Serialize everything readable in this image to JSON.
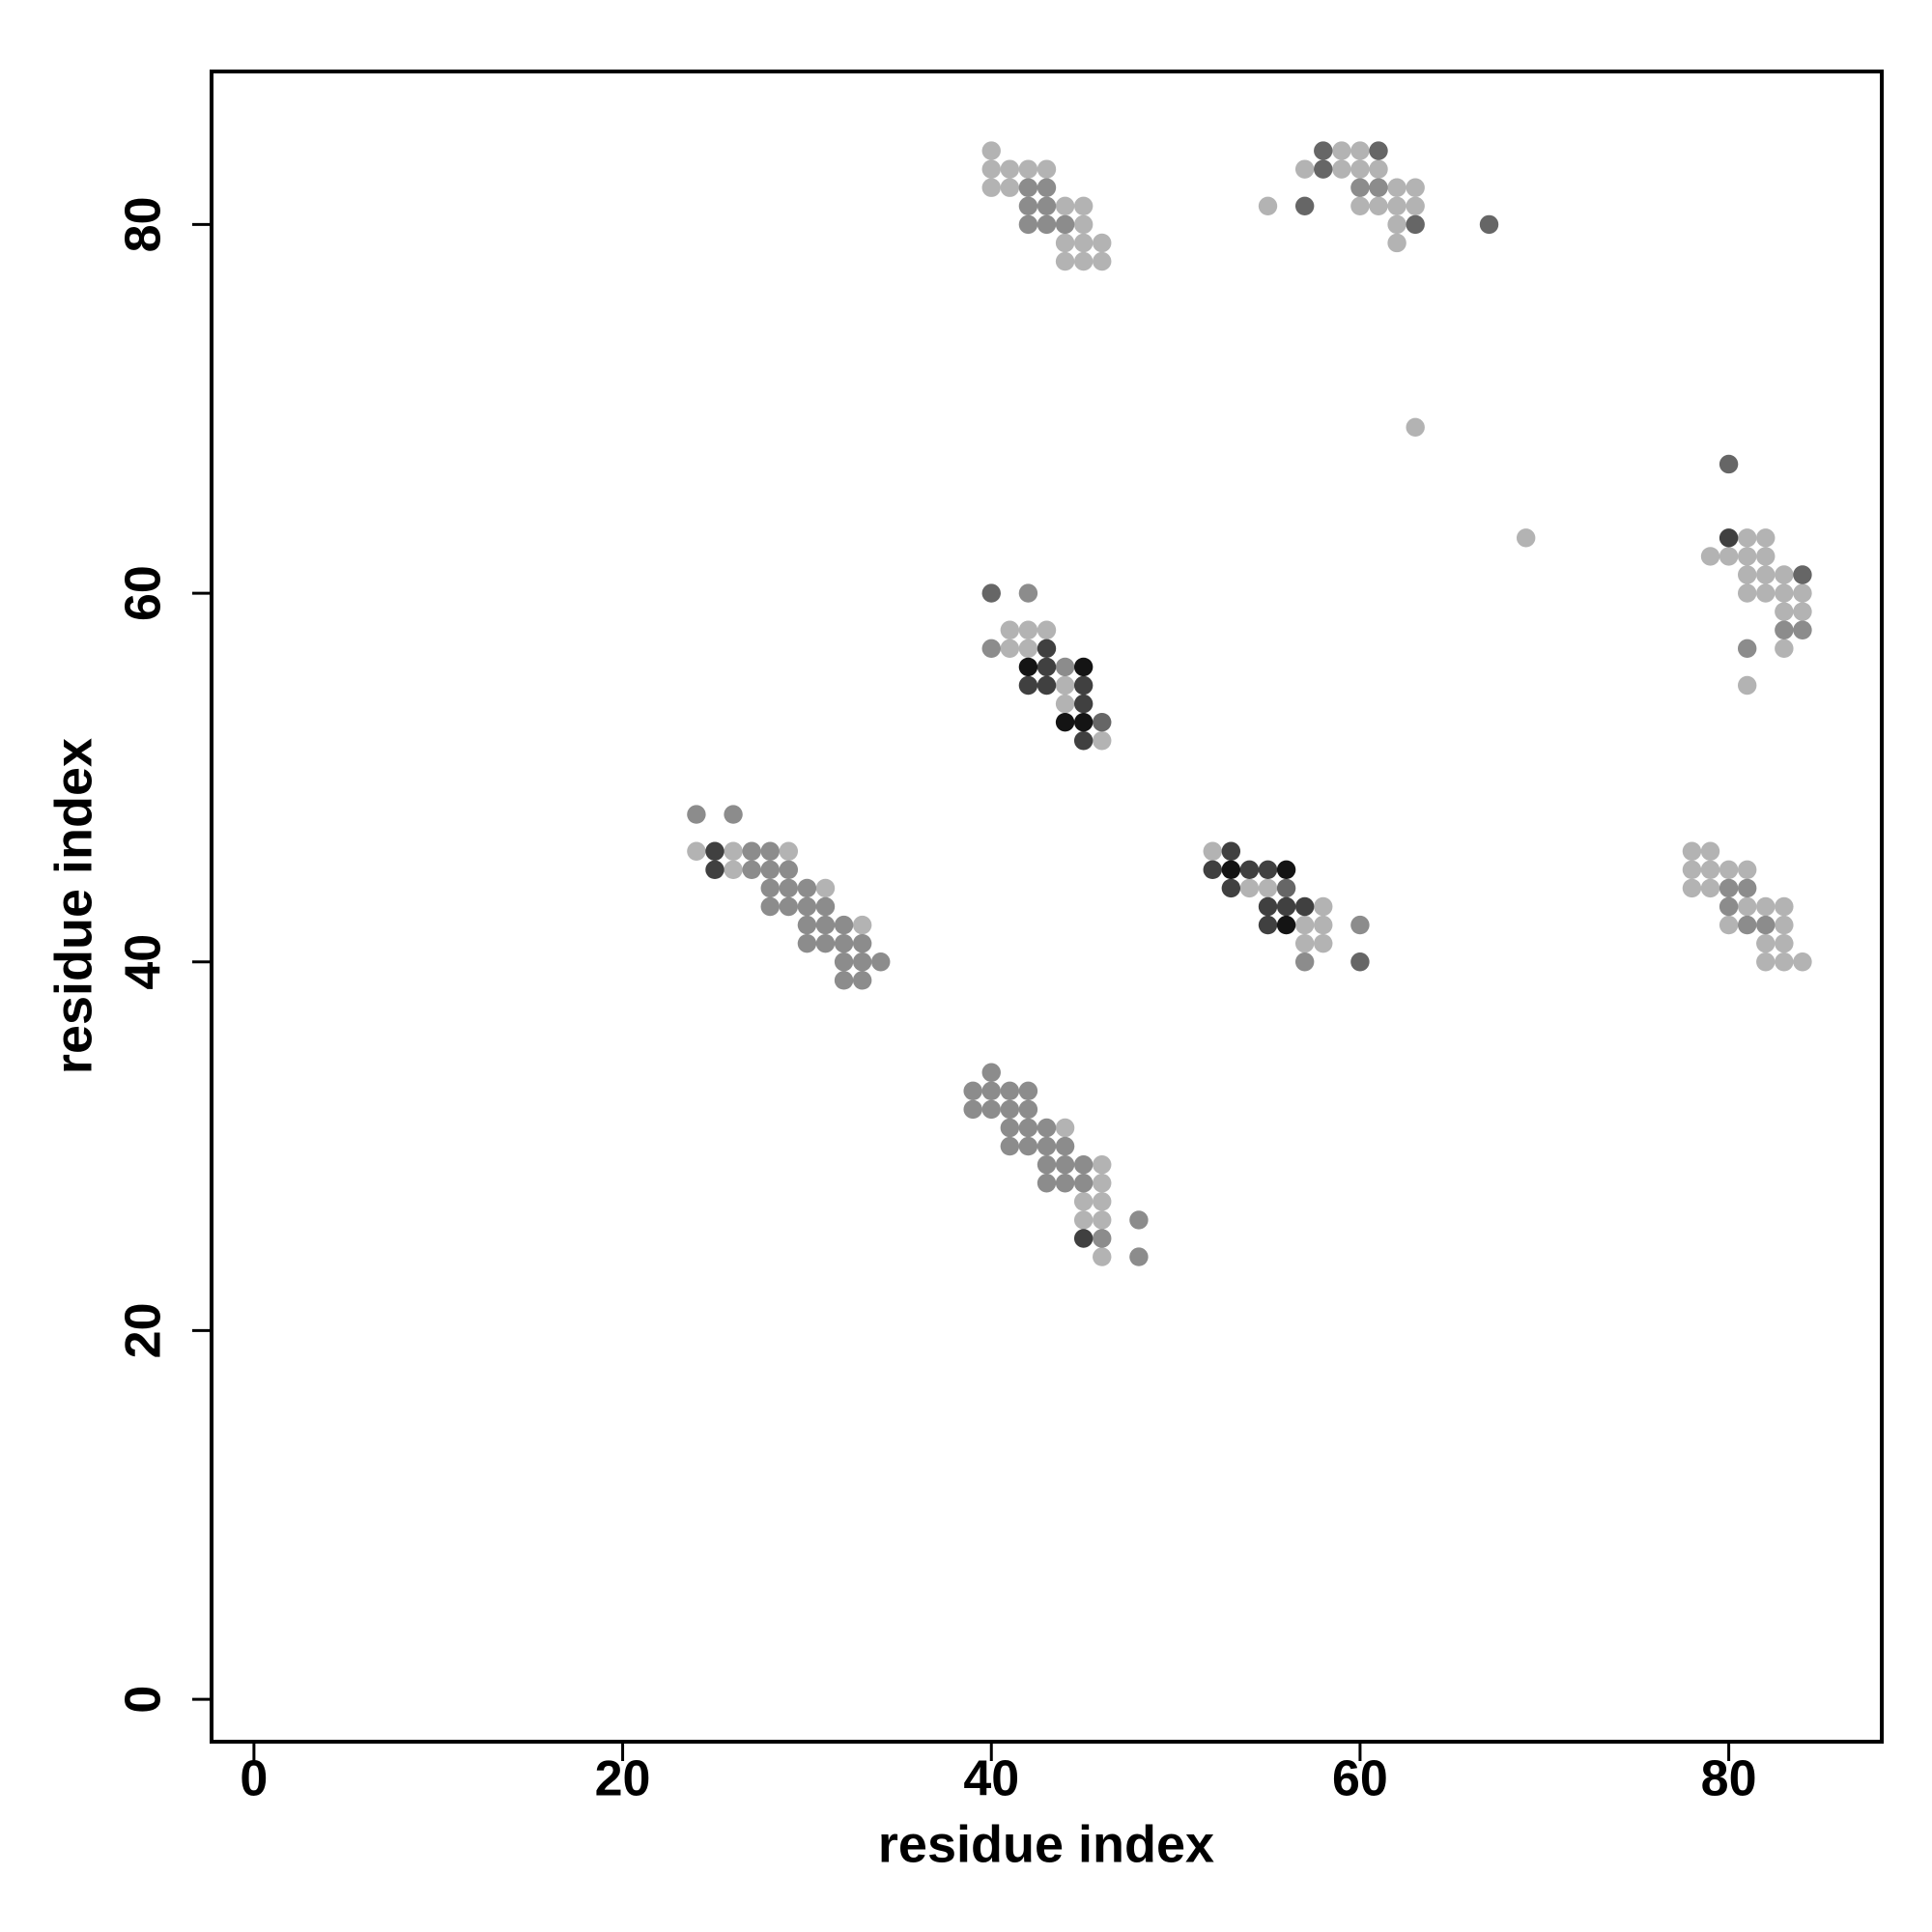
{
  "chart_data": {
    "type": "scatter",
    "xlabel": "residue index",
    "ylabel": "residue index",
    "xlim": [
      -2.3,
      88.3
    ],
    "ylim": [
      -2.3,
      88.3
    ],
    "xticks": [
      0,
      20,
      40,
      60,
      80
    ],
    "yticks": [
      0,
      20,
      40,
      60,
      80
    ],
    "series": [
      {
        "color": "#b3b3b3",
        "x": [
          40,
          40,
          41,
          42,
          43,
          40,
          41,
          44,
          45,
          45,
          44,
          45,
          46,
          44,
          45,
          46,
          59,
          60,
          57,
          59,
          60,
          61,
          62,
          63,
          55,
          60,
          61,
          62,
          63,
          62,
          62,
          63,
          69,
          81,
          82,
          79,
          80,
          81,
          82,
          81,
          82,
          83,
          81,
          82,
          83,
          84,
          83,
          84,
          41,
          42,
          43,
          41,
          42,
          83,
          44,
          81,
          44,
          46,
          24,
          26,
          29,
          52,
          78,
          79,
          26,
          78,
          79,
          80,
          81,
          31,
          54,
          55,
          78,
          79,
          58,
          81,
          82,
          83,
          33,
          57,
          58,
          80,
          83,
          57,
          58,
          82,
          83,
          82,
          83,
          84,
          44,
          46,
          46,
          45,
          46,
          45,
          46,
          46
        ],
        "y": [
          84,
          83,
          83,
          83,
          83,
          82,
          82,
          81,
          81,
          80,
          79,
          79,
          79,
          78,
          78,
          78,
          84,
          84,
          83,
          83,
          83,
          83,
          82,
          82,
          81,
          81,
          81,
          81,
          81,
          80,
          79,
          69,
          63,
          63,
          63,
          62,
          62,
          62,
          62,
          61,
          61,
          61,
          60,
          60,
          60,
          60,
          59,
          59,
          58,
          58,
          58,
          57,
          57,
          57,
          55,
          55,
          54,
          52,
          46,
          46,
          46,
          46,
          46,
          46,
          45,
          45,
          45,
          45,
          45,
          44,
          44,
          44,
          44,
          44,
          43,
          43,
          43,
          43,
          42,
          42,
          42,
          42,
          42,
          41,
          41,
          41,
          41,
          40,
          40,
          40,
          31,
          29,
          28,
          27,
          27,
          26,
          26,
          24
        ]
      },
      {
        "color": "#8c8c8c",
        "x": [
          42,
          43,
          42,
          43,
          42,
          43,
          44,
          60,
          61,
          42,
          40,
          44,
          81,
          83,
          84,
          24,
          26,
          27,
          28,
          27,
          28,
          29,
          28,
          29,
          30,
          80,
          81,
          28,
          29,
          30,
          31,
          80,
          30,
          31,
          32,
          60,
          81,
          82,
          30,
          31,
          32,
          33,
          32,
          33,
          34,
          57,
          32,
          33,
          40,
          39,
          40,
          41,
          42,
          39,
          40,
          41,
          42,
          41,
          42,
          43,
          41,
          42,
          43,
          44,
          43,
          44,
          45,
          43,
          44,
          45,
          48,
          46,
          48
        ],
        "y": [
          82,
          82,
          81,
          81,
          80,
          80,
          80,
          82,
          82,
          60,
          57,
          56,
          57,
          58,
          58,
          48,
          48,
          46,
          46,
          45,
          45,
          45,
          44,
          44,
          44,
          44,
          44,
          43,
          43,
          43,
          43,
          43,
          42,
          42,
          42,
          42,
          42,
          42,
          41,
          41,
          41,
          41,
          40,
          40,
          40,
          40,
          39,
          39,
          34,
          33,
          33,
          33,
          33,
          32,
          32,
          32,
          32,
          31,
          31,
          31,
          30,
          30,
          30,
          30,
          29,
          29,
          29,
          28,
          28,
          28,
          26,
          25,
          24
        ]
      },
      {
        "color": "#666666",
        "x": [
          58,
          61,
          58,
          57,
          63,
          67,
          80,
          84,
          56,
          60,
          46,
          40
        ],
        "y": [
          84,
          84,
          83,
          81,
          80,
          80,
          67,
          61,
          44,
          40,
          53,
          60
        ]
      },
      {
        "color": "#404040",
        "x": [
          80,
          43,
          43,
          42,
          43,
          45,
          45,
          45,
          25,
          53,
          25,
          52,
          54,
          55,
          53,
          55,
          56,
          57,
          55,
          45
        ],
        "y": [
          63,
          57,
          56,
          55,
          55,
          55,
          54,
          52,
          46,
          46,
          45,
          45,
          45,
          45,
          44,
          43,
          43,
          43,
          42,
          25
        ]
      },
      {
        "color": "#141414",
        "x": [
          42,
          45,
          44,
          45,
          53,
          56,
          56
        ],
        "y": [
          56,
          56,
          53,
          53,
          45,
          45,
          42
        ]
      }
    ]
  }
}
